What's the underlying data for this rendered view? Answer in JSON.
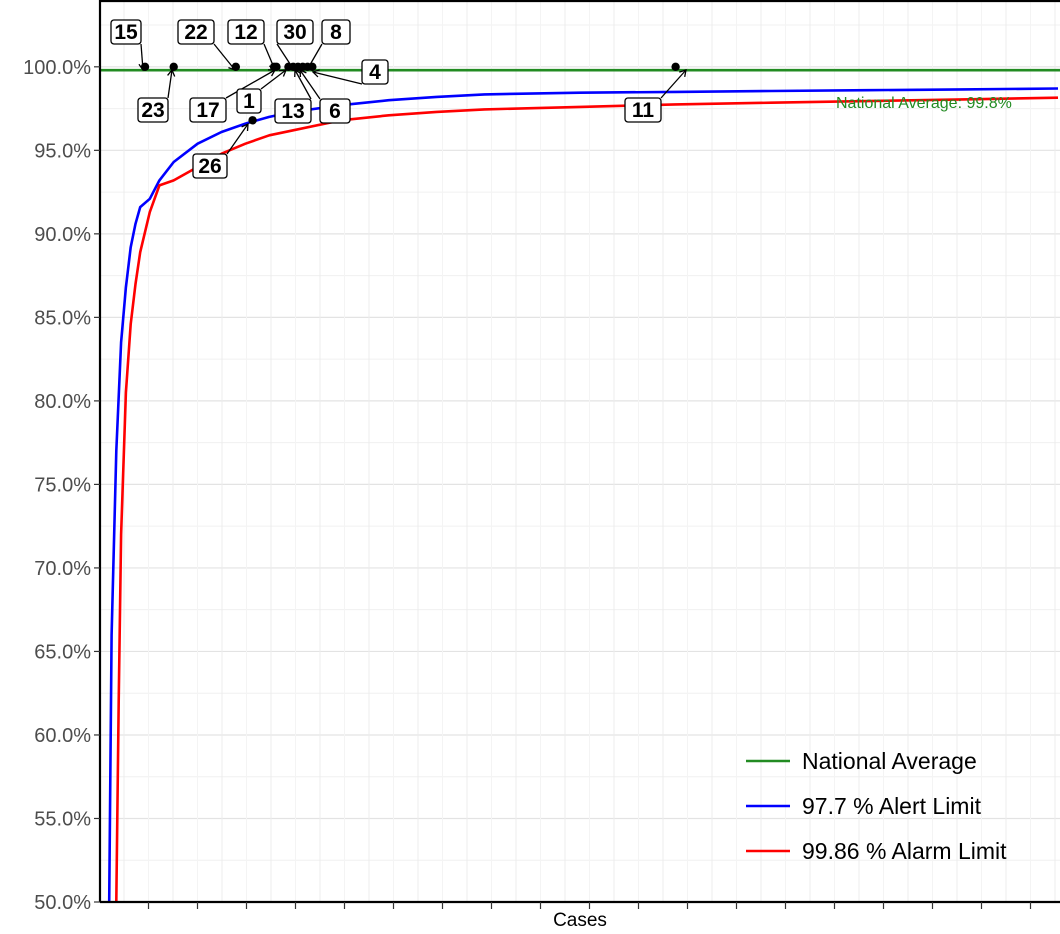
{
  "chart_data": {
    "type": "scatter",
    "title": "",
    "xlabel": "Cases",
    "ylabel": "",
    "x_tick_labels": [],
    "ylim": [
      50,
      104
    ],
    "yticks": [
      50,
      55,
      60,
      65,
      70,
      75,
      80,
      85,
      90,
      95,
      100
    ],
    "ytick_labels": [
      "50.0%",
      "55.0%",
      "60.0%",
      "65.0%",
      "70.0%",
      "75.0%",
      "80.0%",
      "85.0%",
      "90.0%",
      "95.0%",
      "100.0%"
    ],
    "xlim": [
      0,
      200
    ],
    "grid": true,
    "legend_position": "bottom-right",
    "national_average": {
      "name": "National Average",
      "value": 99.8,
      "annotation": "National Average: 99.8%",
      "color": "#228B22"
    },
    "series": [
      {
        "name": "97.7 %  Alert Limit",
        "color": "#0000FF",
        "x": [
          1.5,
          2,
          3,
          4,
          5,
          6,
          7,
          8,
          10,
          12,
          15,
          20,
          25,
          30,
          35,
          40,
          50,
          60,
          70,
          80,
          100,
          120,
          140,
          160,
          180,
          200
        ],
        "y": [
          50,
          66,
          77,
          83.5,
          86.8,
          89.2,
          90.6,
          91.6,
          92.1,
          93.2,
          94.3,
          95.4,
          96.1,
          96.6,
          97.0,
          97.3,
          97.7,
          98.0,
          98.2,
          98.35,
          98.45,
          98.5,
          98.55,
          98.6,
          98.65,
          98.7
        ]
      },
      {
        "name": "99.86 %  Alarm Limit",
        "color": "#FF0000",
        "x": [
          3,
          3.5,
          4,
          5,
          6,
          7,
          8,
          10,
          12,
          15,
          20,
          25,
          30,
          35,
          40,
          50,
          60,
          70,
          80,
          100,
          120,
          140,
          160,
          180,
          200
        ],
        "y": [
          50,
          62,
          72,
          80.5,
          84.6,
          87.0,
          88.9,
          91.3,
          92.9,
          93.2,
          94.0,
          94.8,
          95.4,
          95.9,
          96.2,
          96.8,
          97.1,
          97.3,
          97.45,
          97.6,
          97.75,
          97.85,
          97.95,
          98.05,
          98.15
        ]
      }
    ],
    "points": [
      {
        "label": "15",
        "x": 9,
        "y": 100
      },
      {
        "label": "23",
        "x": 15,
        "y": 100
      },
      {
        "label": "22",
        "x": 28,
        "y": 100
      },
      {
        "label": "26",
        "x": 31.5,
        "y": 96.8
      },
      {
        "label": "17",
        "x": 36,
        "y": 100
      },
      {
        "label": "12",
        "x": 36.5,
        "y": 100
      },
      {
        "label": "1",
        "x": 39,
        "y": 100
      },
      {
        "label": "30",
        "x": 40,
        "y": 100
      },
      {
        "label": "13",
        "x": 41,
        "y": 100
      },
      {
        "label": "6",
        "x": 42,
        "y": 100
      },
      {
        "label": "8",
        "x": 43,
        "y": 100
      },
      {
        "label": "4",
        "x": 44,
        "y": 100
      },
      {
        "label": "11",
        "x": 120,
        "y": 100
      }
    ]
  }
}
